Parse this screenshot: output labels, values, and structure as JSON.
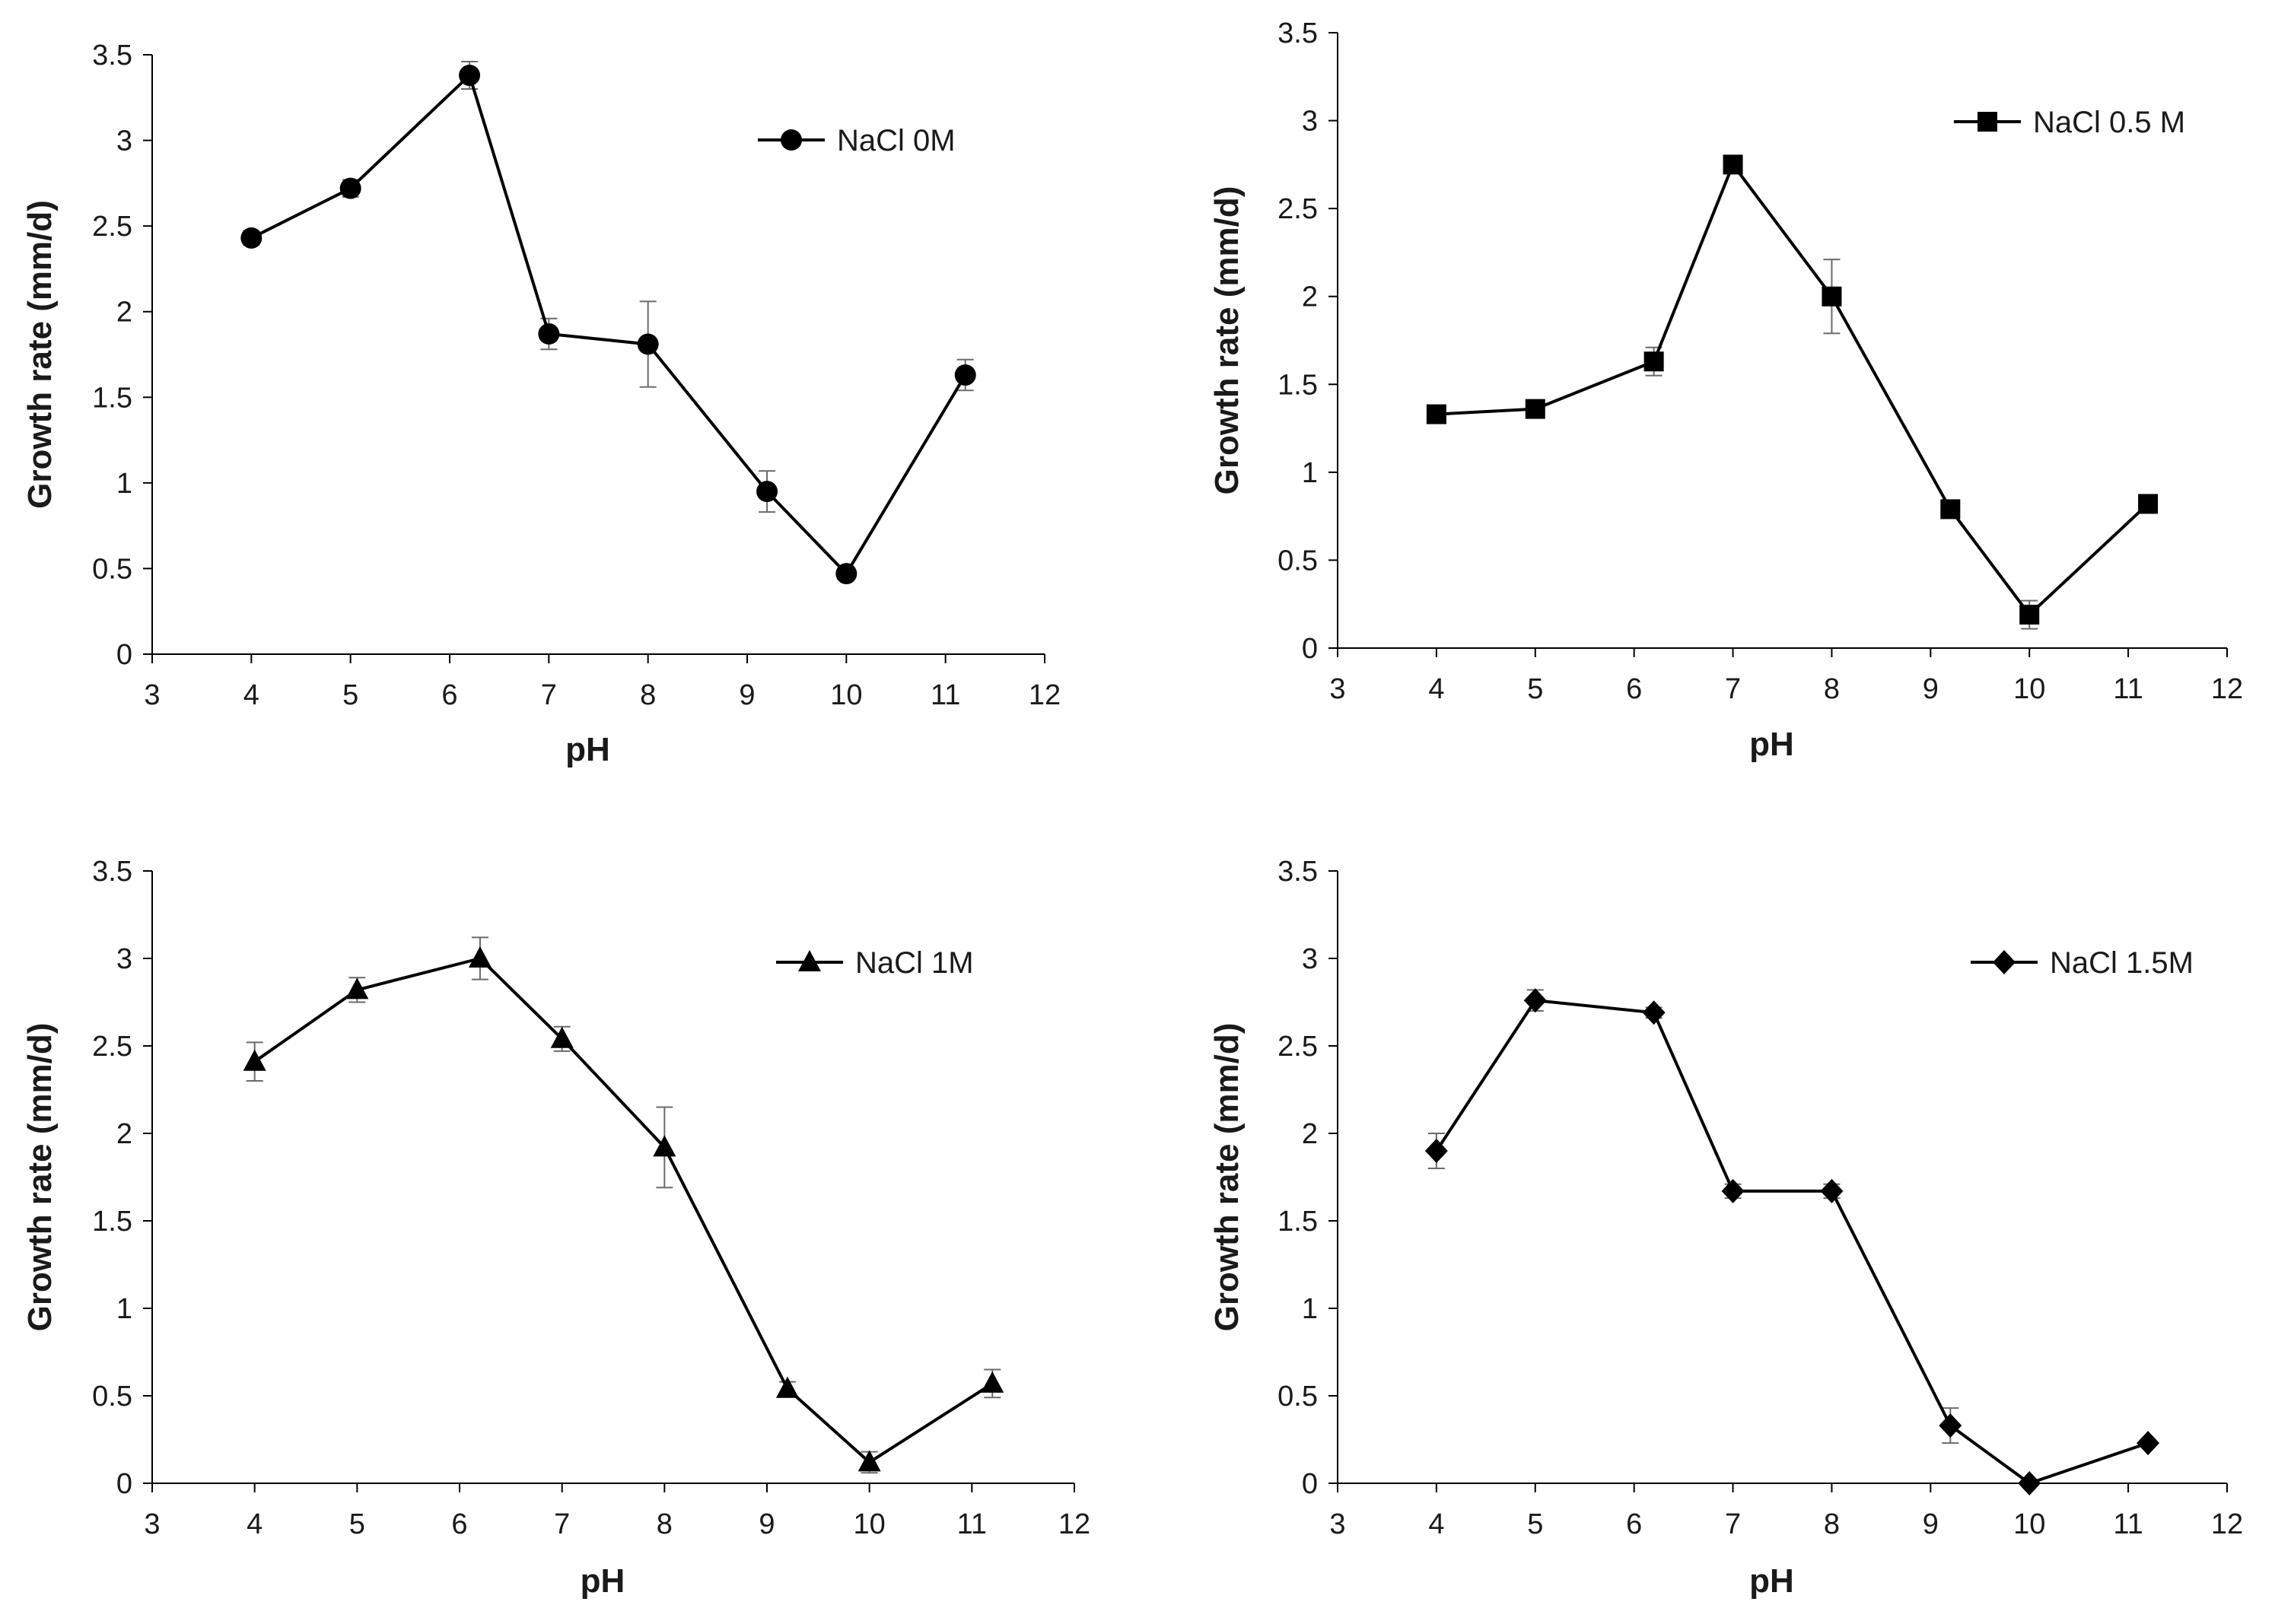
{
  "figure": {
    "background": "#ffffff",
    "line_color": "#000000",
    "axis_color": "#000000",
    "error_bar_color": "#6b6b6b"
  },
  "chart_data": [
    {
      "id": "p1",
      "type": "line",
      "title": "",
      "xlabel": "pH",
      "ylabel": "Growth rate (mm/d)",
      "xlim": [
        3,
        12
      ],
      "ylim": [
        0,
        3.5
      ],
      "xticks": [
        "3",
        "4",
        "5",
        "6",
        "7",
        "8",
        "9",
        "10",
        "11",
        "12"
      ],
      "yticks": [
        "0",
        "0.5",
        "1",
        "1.5",
        "2",
        "2.5",
        "3",
        "3.5"
      ],
      "legend_position": "top-right",
      "series": [
        {
          "name": "NaCl 0M",
          "marker": "circle",
          "x": [
            4,
            5,
            6.2,
            7,
            8,
            9.2,
            10,
            11.2
          ],
          "y": [
            2.43,
            2.72,
            3.38,
            1.87,
            1.81,
            0.95,
            0.47,
            1.63
          ],
          "err": [
            0.04,
            0.05,
            0.08,
            0.09,
            0.25,
            0.12,
            0.03,
            0.09
          ]
        }
      ]
    },
    {
      "id": "p2",
      "type": "line",
      "title": "",
      "xlabel": "pH",
      "ylabel": "Growth rate (mm/d)",
      "xlim": [
        3,
        12
      ],
      "ylim": [
        0,
        3.5
      ],
      "xticks": [
        "3",
        "4",
        "5",
        "6",
        "7",
        "8",
        "9",
        "10",
        "11",
        "12"
      ],
      "yticks": [
        "0",
        "0.5",
        "1",
        "1.5",
        "2",
        "2.5",
        "3",
        "3.5"
      ],
      "legend_position": "top-right",
      "series": [
        {
          "name": "NaCl 0.5 M",
          "marker": "square",
          "x": [
            4,
            5,
            6.2,
            7,
            8,
            9.2,
            10,
            11.2
          ],
          "y": [
            1.33,
            1.36,
            1.63,
            2.75,
            2.0,
            0.79,
            0.19,
            0.82
          ],
          "err": [
            0.02,
            0.02,
            0.08,
            0.04,
            0.21,
            0.03,
            0.08,
            0.02
          ]
        }
      ]
    },
    {
      "id": "p3",
      "type": "line",
      "title": "",
      "xlabel": "pH",
      "ylabel": "Growth rate (mm/d)",
      "xlim": [
        3,
        12
      ],
      "ylim": [
        0,
        3.5
      ],
      "xticks": [
        "3",
        "4",
        "5",
        "6",
        "7",
        "8",
        "9",
        "10",
        "11",
        "12"
      ],
      "yticks": [
        "0",
        "0.5",
        "1",
        "1.5",
        "2",
        "2.5",
        "3",
        "3.5"
      ],
      "legend_position": "top-right",
      "series": [
        {
          "name": "NaCl 1M",
          "marker": "triangle",
          "x": [
            4,
            5,
            6.2,
            7,
            8,
            9.2,
            10,
            11.2
          ],
          "y": [
            2.41,
            2.82,
            3.0,
            2.54,
            1.92,
            0.54,
            0.12,
            0.57
          ],
          "err": [
            0.11,
            0.07,
            0.12,
            0.07,
            0.23,
            0.04,
            0.06,
            0.08
          ]
        }
      ]
    },
    {
      "id": "p4",
      "type": "line",
      "title": "",
      "xlabel": "pH",
      "ylabel": "Growth rate (mm/d)",
      "xlim": [
        3,
        12
      ],
      "ylim": [
        0,
        3.5
      ],
      "xticks": [
        "3",
        "4",
        "5",
        "6",
        "7",
        "8",
        "9",
        "10",
        "11",
        "12"
      ],
      "yticks": [
        "0",
        "0.5",
        "1",
        "1.5",
        "2",
        "2.5",
        "3",
        "3.5"
      ],
      "legend_position": "top-right",
      "series": [
        {
          "name": "NaCl 1.5M",
          "marker": "diamond",
          "x": [
            4,
            5,
            6.2,
            7,
            8,
            9.2,
            10,
            11.2
          ],
          "y": [
            1.9,
            2.76,
            2.69,
            1.67,
            1.67,
            0.33,
            0.0,
            0.23
          ],
          "err": [
            0.1,
            0.06,
            0.03,
            0.04,
            0.04,
            0.1,
            0.01,
            0.01
          ]
        }
      ]
    }
  ]
}
